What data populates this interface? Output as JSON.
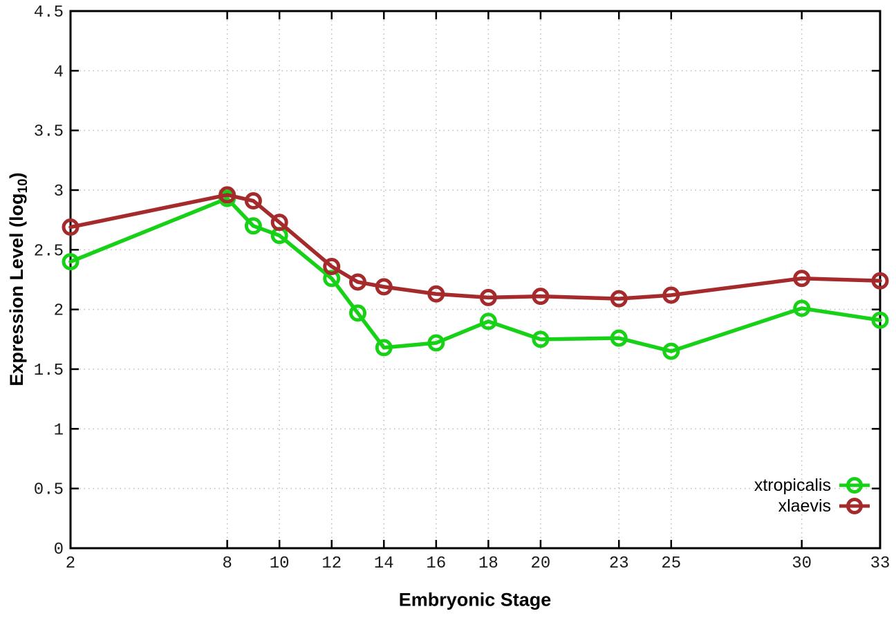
{
  "chart_data": {
    "type": "line",
    "title": "",
    "xlabel": "Embryonic Stage",
    "ylabel_main": "Expression Level (log",
    "ylabel_sub": "10",
    "ylabel_close": ")",
    "x": [
      2,
      8,
      9,
      10,
      12,
      13,
      14,
      16,
      18,
      20,
      23,
      25,
      30,
      33
    ],
    "series": [
      {
        "name": "xtropicalis",
        "color": "#17d117",
        "values": [
          2.4,
          2.93,
          2.7,
          2.62,
          2.26,
          1.97,
          1.68,
          1.72,
          1.9,
          1.75,
          1.76,
          1.65,
          2.01,
          1.91
        ]
      },
      {
        "name": "xlaevis",
        "color": "#a52a2c",
        "values": [
          2.69,
          2.96,
          2.91,
          2.73,
          2.36,
          2.23,
          2.19,
          2.13,
          2.1,
          2.11,
          2.09,
          2.12,
          2.26,
          2.24
        ]
      }
    ],
    "xlim": [
      2,
      33
    ],
    "ylim": [
      0,
      4.5
    ],
    "xticks": {
      "values": [
        2,
        8,
        10,
        12,
        14,
        16,
        18,
        20,
        23,
        25,
        30,
        33
      ],
      "labels": [
        "2",
        "8",
        "10",
        "12",
        "14",
        "16",
        "18",
        "20",
        "23",
        "25",
        "30",
        "33"
      ]
    },
    "yticks": {
      "values": [
        0,
        0.5,
        1,
        1.5,
        2,
        2.5,
        3,
        3.5,
        4,
        4.5
      ],
      "labels": [
        "0",
        "0.5",
        "1",
        "1.5",
        "2",
        "2.5",
        "3",
        "3.5",
        "4",
        "4.5"
      ]
    },
    "grid": true,
    "legend_position": "bottom-right",
    "colors": {
      "background": "#ffffff",
      "border": "#000000",
      "grid": "#bbbbbb",
      "tick_text": "#1a1a1a"
    }
  }
}
